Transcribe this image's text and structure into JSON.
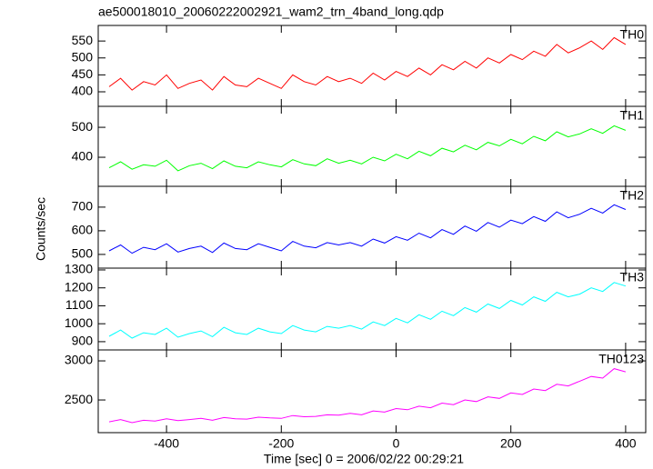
{
  "chart_data": {
    "type": "line",
    "title": "ae500018010_20060222002921_wam2_trn_4band_long.qdp",
    "xlabel": "Time [sec] 0 = 2006/02/22 00:29:21",
    "ylabel": "Counts/sec",
    "xlim": [
      -519,
      435
    ],
    "xticks": [
      -400,
      -200,
      0,
      200,
      400
    ],
    "x": [
      -500,
      -480,
      -460,
      -440,
      -420,
      -400,
      -380,
      -360,
      -340,
      -320,
      -300,
      -280,
      -260,
      -240,
      -220,
      -200,
      -180,
      -160,
      -140,
      -120,
      -100,
      -80,
      -60,
      -40,
      -20,
      0,
      20,
      40,
      60,
      80,
      100,
      120,
      140,
      160,
      180,
      200,
      220,
      240,
      260,
      280,
      300,
      320,
      340,
      360,
      380,
      400
    ],
    "series": [
      {
        "name": "TH0",
        "color": "#ff0000",
        "ylim": [
          357,
          596
        ],
        "yticks": [
          400,
          450,
          500,
          550
        ],
        "values": [
          415,
          440,
          405,
          430,
          420,
          450,
          410,
          425,
          435,
          405,
          445,
          420,
          415,
          440,
          425,
          410,
          450,
          430,
          420,
          445,
          430,
          440,
          425,
          455,
          435,
          460,
          445,
          470,
          450,
          480,
          465,
          490,
          470,
          500,
          485,
          510,
          495,
          520,
          505,
          540,
          515,
          530,
          550,
          525,
          560,
          540
        ]
      },
      {
        "name": "TH1",
        "color": "#00ff00",
        "ylim": [
          303,
          570
        ],
        "yticks": [
          400,
          500
        ],
        "values": [
          365,
          385,
          360,
          375,
          370,
          390,
          355,
          372,
          380,
          362,
          388,
          370,
          365,
          385,
          375,
          368,
          392,
          378,
          372,
          395,
          380,
          390,
          378,
          400,
          388,
          410,
          395,
          420,
          405,
          430,
          418,
          440,
          425,
          450,
          438,
          460,
          445,
          470,
          455,
          485,
          468,
          478,
          495,
          480,
          505,
          490
        ]
      },
      {
        "name": "TH2",
        "color": "#0000ff",
        "ylim": [
          442,
          788
        ],
        "yticks": [
          500,
          600,
          700
        ],
        "values": [
          515,
          540,
          505,
          530,
          520,
          545,
          510,
          525,
          535,
          508,
          548,
          525,
          520,
          545,
          530,
          515,
          555,
          535,
          528,
          550,
          540,
          550,
          535,
          565,
          548,
          575,
          560,
          590,
          570,
          605,
          585,
          620,
          598,
          635,
          615,
          645,
          630,
          660,
          640,
          680,
          655,
          670,
          695,
          675,
          710,
          690
        ]
      },
      {
        "name": "TH3",
        "color": "#00ffff",
        "ylim": [
          854,
          1310
        ],
        "yticks": [
          900,
          1000,
          1100,
          1200,
          1300
        ],
        "values": [
          930,
          965,
          920,
          950,
          940,
          975,
          925,
          945,
          960,
          928,
          980,
          950,
          940,
          975,
          955,
          945,
          990,
          965,
          955,
          985,
          975,
          990,
          970,
          1010,
          990,
          1030,
          1005,
          1050,
          1025,
          1070,
          1045,
          1090,
          1065,
          1110,
          1085,
          1130,
          1105,
          1150,
          1125,
          1175,
          1150,
          1165,
          1200,
          1180,
          1230,
          1210
        ]
      },
      {
        "name": "TH0123",
        "color": "#ff00ff",
        "ylim": [
          2082,
          3140
        ],
        "yticks": [
          2500,
          3000
        ],
        "values": [
          2220,
          2250,
          2210,
          2240,
          2230,
          2260,
          2235,
          2250,
          2265,
          2240,
          2275,
          2260,
          2255,
          2280,
          2270,
          2265,
          2300,
          2285,
          2290,
          2310,
          2305,
          2330,
          2310,
          2360,
          2345,
          2390,
          2375,
          2420,
          2400,
          2460,
          2440,
          2500,
          2480,
          2540,
          2520,
          2590,
          2570,
          2640,
          2620,
          2700,
          2680,
          2740,
          2800,
          2780,
          2900,
          2860
        ]
      }
    ]
  }
}
